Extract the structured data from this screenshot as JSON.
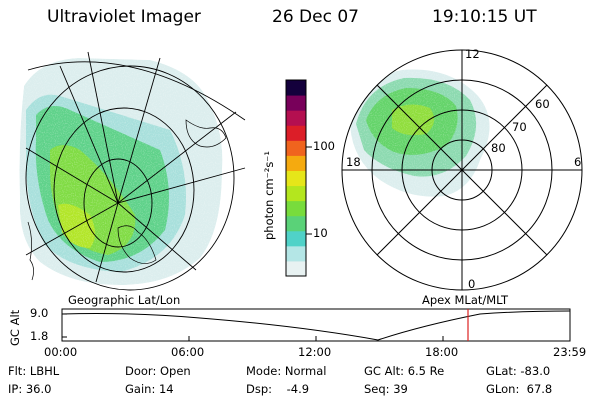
{
  "header": {
    "instrument": "Ultraviolet Imager",
    "date": "26 Dec 07",
    "time": "19:10:15 UT"
  },
  "left_map": {
    "caption": "Geographic Lat/Lon"
  },
  "right_map": {
    "caption": "Apex MLat/MLT",
    "mlt_labels": {
      "top": "12",
      "bottom": "0",
      "left": "18",
      "right": "6"
    },
    "lat_labels": [
      "60",
      "70",
      "80"
    ]
  },
  "colorbar": {
    "unit_label": "photon cm⁻²s⁻¹",
    "ticks": [
      "100",
      "10"
    ],
    "scale": "log",
    "colors": [
      "#e8f2f2",
      "#b4e6e6",
      "#50d2c8",
      "#5ad278",
      "#78dc3c",
      "#b4e61e",
      "#e6e619",
      "#f5aa0f",
      "#f0641e",
      "#dc1e28",
      "#b40f50",
      "#78005a",
      "#14003c"
    ]
  },
  "altitude_plot": {
    "ylabel": "GC Alt",
    "y_ticks": [
      "9.0",
      "1.8"
    ],
    "x_ticks": [
      "00:00",
      "06:00",
      "12:00",
      "18:00",
      "23:59"
    ],
    "current_time_marker": "19:10",
    "marker_color": "#dd2222"
  },
  "info": {
    "row1": [
      {
        "label": "Flt:",
        "value": "LBHL"
      },
      {
        "label": "Door:",
        "value": "Open"
      },
      {
        "label": "Mode:",
        "value": "Normal"
      },
      {
        "label": "GC Alt:",
        "value": "6.5 Re"
      },
      {
        "label": "GLat:",
        "value": "-83.0"
      }
    ],
    "row2": [
      {
        "label": "IP:",
        "value": "36.0"
      },
      {
        "label": "Gain:",
        "value": "14"
      },
      {
        "label": "Dsp:",
        "value": "-4.9"
      },
      {
        "label": "Seq:",
        "value": "39"
      },
      {
        "label": "GLon:",
        "value": "67.8"
      }
    ]
  }
}
